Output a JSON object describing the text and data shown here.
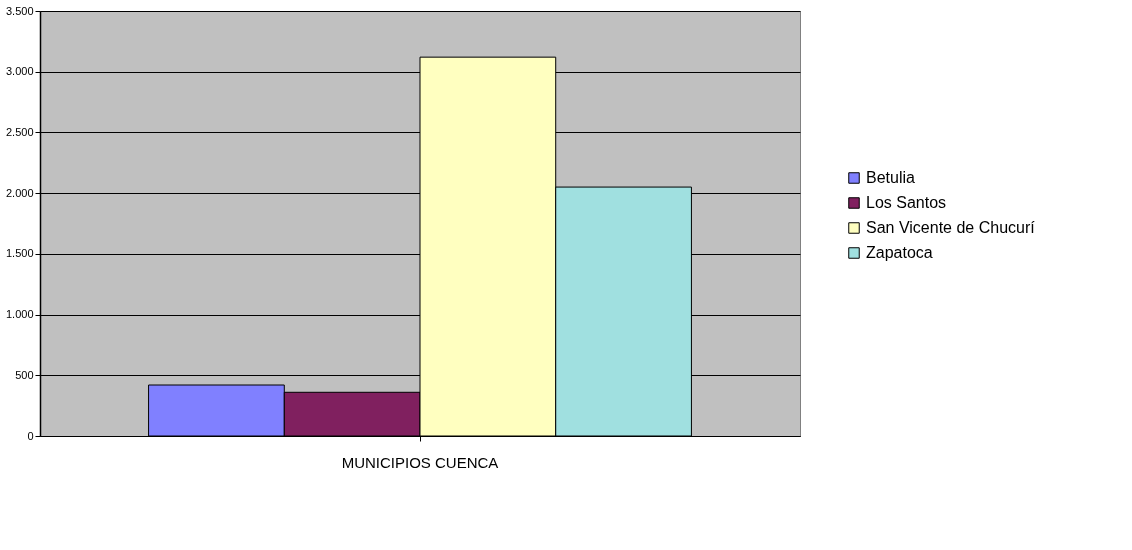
{
  "chart_data": {
    "type": "bar",
    "categories": [
      "MUNICIPIOS CUENCA"
    ],
    "series": [
      {
        "name": "Betulia",
        "color": "#8080ff",
        "values": [
          420
        ]
      },
      {
        "name": "Los Santos",
        "color": "#80205f",
        "values": [
          360
        ]
      },
      {
        "name": "San Vicente de Chucurí",
        "color": "#ffffc0",
        "values": [
          3120
        ]
      },
      {
        "name": "Zapatoca",
        "color": "#a0e0e0",
        "values": [
          2050
        ]
      }
    ],
    "ylim": [
      0,
      3500
    ],
    "yticks": [
      0,
      500,
      {
        "value": 1000,
        "label": "1.000"
      },
      {
        "value": 1500,
        "label": "1.500"
      },
      {
        "value": 2000,
        "label": "2.000"
      },
      {
        "value": 2500,
        "label": "2.500"
      },
      {
        "value": 3000,
        "label": "3.000"
      },
      {
        "value": 3500,
        "label": "3.500"
      }
    ],
    "grid": "y",
    "legend": "right"
  }
}
